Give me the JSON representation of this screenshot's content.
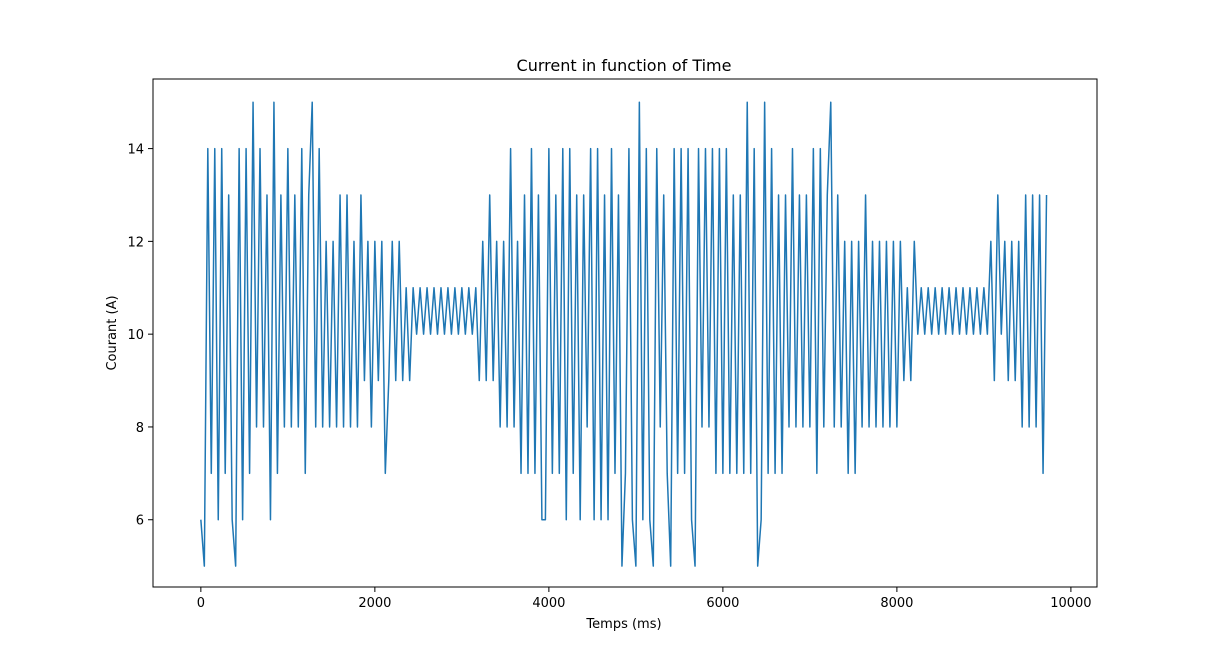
{
  "chart_data": {
    "type": "line",
    "title": "Current in function of Time",
    "xlabel": "Temps (ms)",
    "ylabel": "Courant (A)",
    "xlim": [
      -550,
      10300
    ],
    "ylim": [
      4.55,
      15.5
    ],
    "x_ticks": [
      0,
      2000,
      4000,
      6000,
      8000,
      10000
    ],
    "x_tick_labels": [
      "0",
      "2000",
      "4000",
      "6000",
      "8000",
      "10000"
    ],
    "y_ticks": [
      6,
      8,
      10,
      12,
      14
    ],
    "y_tick_labels": [
      "6",
      "8",
      "10",
      "12",
      "14"
    ],
    "grid": false,
    "legend": "none",
    "series": [
      {
        "color": "#1f77b4",
        "x_start": 0,
        "x_end": 9750,
        "sample_step_ms": 40,
        "envelope_x": [
          0,
          10,
          20,
          200,
          300,
          600,
          800,
          1000,
          1300,
          1600,
          1900,
          2000,
          2300,
          2400,
          2500,
          2700,
          2800,
          3000,
          3200,
          3300,
          3400,
          3600,
          3800,
          4000,
          4200,
          4500,
          5000,
          5500,
          6000,
          6500,
          6900,
          7200,
          7500,
          7700,
          8000,
          8200,
          8300,
          8500,
          8800,
          9000,
          9200,
          9500,
          9750
        ],
        "envelope_max": [
          6,
          15,
          15,
          15,
          15,
          15,
          15,
          14,
          14,
          13,
          13,
          12,
          12,
          11,
          11,
          11,
          11,
          11,
          12,
          13,
          13,
          14,
          14,
          14,
          15,
          15,
          15,
          15,
          15,
          15,
          14,
          14,
          13,
          13,
          12,
          12,
          11,
          11,
          11,
          11,
          13,
          13,
          14
        ],
        "envelope_min": [
          6,
          6,
          6,
          6,
          6,
          6,
          6,
          7,
          7,
          7,
          8,
          8,
          8,
          9,
          10,
          10,
          10,
          10,
          9,
          8,
          8,
          7,
          6,
          6,
          6,
          6,
          6,
          6,
          6,
          6,
          7,
          7,
          7,
          8,
          8,
          9,
          10,
          10,
          10,
          10,
          9,
          8,
          7
        ],
        "outliers": [
          {
            "x": 20,
            "y": 5
          },
          {
            "x": 380,
            "y": 5
          },
          {
            "x": 2130,
            "y": 7
          },
          {
            "x": 3950,
            "y": 6
          },
          {
            "x": 4850,
            "y": 5
          },
          {
            "x": 5000,
            "y": 5
          },
          {
            "x": 5180,
            "y": 5
          },
          {
            "x": 5380,
            "y": 5
          },
          {
            "x": 5680,
            "y": 5
          },
          {
            "x": 6400,
            "y": 5
          },
          {
            "x": 1270,
            "y": 15
          },
          {
            "x": 7250,
            "y": 15
          }
        ]
      }
    ]
  }
}
